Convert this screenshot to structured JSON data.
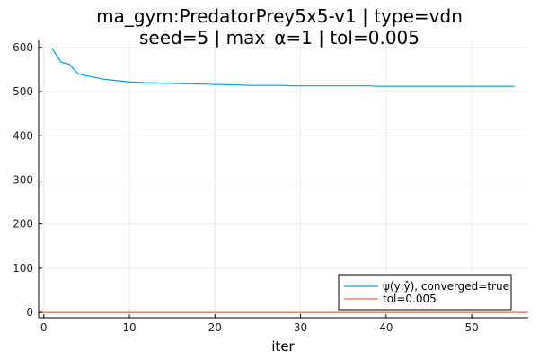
{
  "chart_data": {
    "type": "line",
    "title_lines": [
      "ma_gym:PredatorPrey5x5-v1 | type=vdn",
      "seed=5 | max_α=1 | tol=0.005"
    ],
    "xlabel": "iter",
    "ylabel": "",
    "xlim": [
      -0.6,
      56.6
    ],
    "ylim": [
      -12,
      616
    ],
    "x_ticks": [
      0,
      10,
      20,
      30,
      40,
      50
    ],
    "y_ticks": [
      0,
      100,
      200,
      300,
      400,
      500,
      600
    ],
    "grid": true,
    "legend_position": "bottom-right",
    "series": [
      {
        "name": "ψ(y,ŷ), converged=true",
        "color": "#009af9",
        "x": [
          1,
          2,
          3,
          4,
          5,
          6,
          7,
          8,
          9,
          10,
          11,
          12,
          13,
          14,
          15,
          16,
          17,
          18,
          19,
          20,
          21,
          22,
          23,
          24,
          25,
          26,
          27,
          28,
          29,
          30,
          31,
          32,
          33,
          34,
          35,
          36,
          37,
          38,
          39,
          40,
          41,
          42,
          43,
          44,
          45,
          46,
          47,
          48,
          49,
          50,
          51,
          52,
          53,
          54,
          55
        ],
        "y": [
          597,
          567,
          562,
          540,
          536,
          532,
          528,
          526,
          524,
          522,
          521,
          520,
          520,
          519,
          519,
          518,
          518,
          517,
          517,
          516,
          516,
          515,
          515,
          514,
          514,
          514,
          514,
          514,
          513,
          513,
          513,
          513,
          513,
          513,
          513,
          513,
          513,
          513,
          512,
          512,
          512,
          512,
          512,
          512,
          512,
          512,
          512,
          512,
          512,
          512,
          512,
          512,
          512,
          512,
          512
        ]
      },
      {
        "name": "tol=0.005",
        "color": "#e26f46",
        "hline": 0.005
      }
    ]
  }
}
